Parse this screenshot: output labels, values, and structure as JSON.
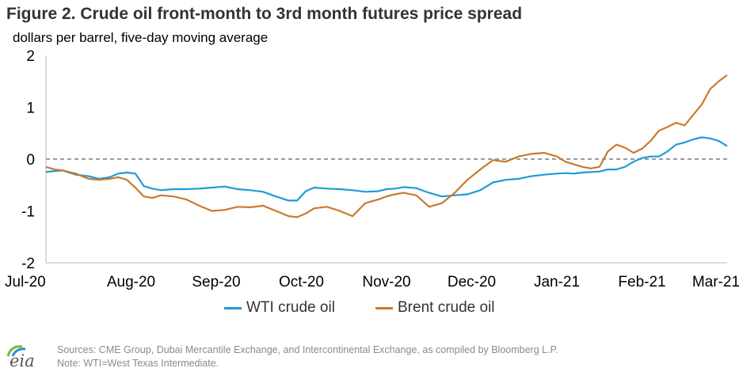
{
  "title": "Figure 2. Crude oil front-month to 3rd month futures price spread",
  "subtitle": "dollars per barrel, five-day moving average",
  "logo_text": "eia",
  "sources": "Sources: CME Group, Dubai Mercantile Exchange, and Intercontinental Exchange, as compiled by Bloomberg L.P.",
  "note": "Note: WTI=West Texas Intermediate.",
  "colors": {
    "wti": "#1F9BD7",
    "brent": "#C97A2E",
    "zero_line": "#9a9a9a",
    "axis": "#bbbbbb"
  },
  "chart_data": {
    "type": "line",
    "ylim": [
      -2,
      2
    ],
    "yticks": [
      "2",
      "1",
      "0",
      "-1",
      "-2"
    ],
    "ytick_values": [
      2,
      1,
      0,
      -1,
      -2
    ],
    "xticks": [
      "Jul-20",
      "Aug-20",
      "Sep-20",
      "Oct-20",
      "Nov-20",
      "Dec-20",
      "Jan-21",
      "Feb-21",
      "Mar-21"
    ],
    "xlim": [
      0,
      8.0
    ],
    "zero_line": "dashed",
    "legend_position": "bottom",
    "series": [
      {
        "name": "WTI crude oil",
        "color_key": "wti",
        "x": [
          0.0,
          0.1,
          0.2,
          0.35,
          0.5,
          0.62,
          0.75,
          0.85,
          0.95,
          1.05,
          1.15,
          1.25,
          1.35,
          1.5,
          1.65,
          1.8,
          1.95,
          2.1,
          2.25,
          2.4,
          2.55,
          2.7,
          2.85,
          2.95,
          3.05,
          3.15,
          3.3,
          3.45,
          3.6,
          3.75,
          3.9,
          4.0,
          4.1,
          4.2,
          4.35,
          4.5,
          4.65,
          4.8,
          4.95,
          5.1,
          5.25,
          5.4,
          5.55,
          5.7,
          5.85,
          6.0,
          6.1,
          6.2,
          6.3,
          6.4,
          6.5,
          6.6,
          6.7,
          6.8,
          6.9,
          7.0,
          7.1,
          7.2,
          7.3,
          7.4,
          7.5,
          7.6,
          7.7,
          7.8,
          7.9,
          8.0
        ],
        "y": [
          -0.25,
          -0.23,
          -0.22,
          -0.3,
          -0.33,
          -0.38,
          -0.35,
          -0.28,
          -0.26,
          -0.28,
          -0.52,
          -0.57,
          -0.6,
          -0.58,
          -0.58,
          -0.57,
          -0.55,
          -0.53,
          -0.58,
          -0.6,
          -0.63,
          -0.72,
          -0.8,
          -0.8,
          -0.62,
          -0.55,
          -0.57,
          -0.58,
          -0.6,
          -0.63,
          -0.62,
          -0.58,
          -0.57,
          -0.54,
          -0.56,
          -0.65,
          -0.72,
          -0.7,
          -0.68,
          -0.6,
          -0.45,
          -0.4,
          -0.38,
          -0.33,
          -0.3,
          -0.28,
          -0.27,
          -0.28,
          -0.26,
          -0.25,
          -0.24,
          -0.2,
          -0.2,
          -0.15,
          -0.05,
          0.02,
          0.05,
          0.05,
          0.15,
          0.28,
          0.32,
          0.38,
          0.42,
          0.4,
          0.35,
          0.25
        ]
      },
      {
        "name": "Brent crude oil",
        "color_key": "brent",
        "x": [
          0.0,
          0.1,
          0.2,
          0.35,
          0.5,
          0.62,
          0.75,
          0.85,
          0.95,
          1.05,
          1.15,
          1.25,
          1.35,
          1.5,
          1.65,
          1.8,
          1.95,
          2.1,
          2.25,
          2.4,
          2.55,
          2.7,
          2.85,
          2.95,
          3.05,
          3.15,
          3.3,
          3.45,
          3.6,
          3.75,
          3.9,
          4.0,
          4.1,
          4.2,
          4.35,
          4.5,
          4.65,
          4.8,
          4.95,
          5.1,
          5.25,
          5.4,
          5.55,
          5.7,
          5.85,
          6.0,
          6.1,
          6.2,
          6.3,
          6.4,
          6.5,
          6.6,
          6.7,
          6.8,
          6.9,
          7.0,
          7.1,
          7.2,
          7.3,
          7.4,
          7.5,
          7.6,
          7.7,
          7.8,
          7.9,
          8.0
        ],
        "y": [
          -0.15,
          -0.2,
          -0.22,
          -0.28,
          -0.38,
          -0.4,
          -0.38,
          -0.35,
          -0.4,
          -0.55,
          -0.72,
          -0.75,
          -0.7,
          -0.72,
          -0.78,
          -0.9,
          -1.0,
          -0.98,
          -0.92,
          -0.93,
          -0.9,
          -1.0,
          -1.1,
          -1.12,
          -1.05,
          -0.95,
          -0.92,
          -1.0,
          -1.1,
          -0.85,
          -0.78,
          -0.72,
          -0.68,
          -0.65,
          -0.7,
          -0.92,
          -0.85,
          -0.65,
          -0.4,
          -0.2,
          -0.02,
          -0.05,
          0.05,
          0.1,
          0.12,
          0.05,
          -0.05,
          -0.1,
          -0.15,
          -0.18,
          -0.15,
          0.15,
          0.28,
          0.22,
          0.12,
          0.2,
          0.35,
          0.55,
          0.62,
          0.7,
          0.65,
          0.85,
          1.05,
          1.35,
          1.5,
          1.62
        ]
      }
    ]
  }
}
